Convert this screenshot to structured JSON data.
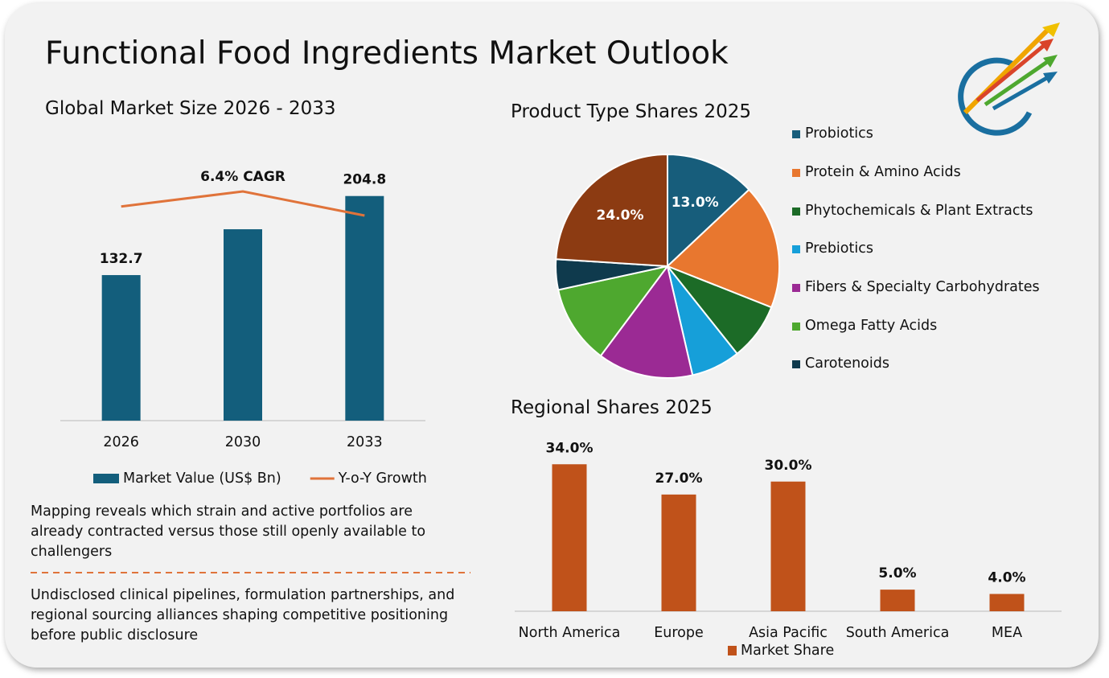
{
  "title": "Functional Food Ingredients Market Outlook",
  "chart_data": [
    {
      "type": "bar",
      "title": "Global Market Size 2026 - 2033",
      "categories": [
        "2026",
        "2030",
        "2033"
      ],
      "series": [
        {
          "name": "Market Value (US$ Bn)",
          "color": "#135e7c",
          "values": [
            132.7,
            174.5,
            204.8
          ],
          "value_labels": [
            "132.7",
            null,
            "204.8"
          ]
        },
        {
          "name": "Y-o-Y Growth",
          "type": "line",
          "axis": "y2",
          "color": "#e0733a",
          "values": [
            7.1,
            7.6,
            6.8
          ]
        }
      ],
      "annotation": "6.4% CAGR",
      "ylim": [
        0,
        220
      ],
      "y2lim": [
        0,
        8
      ],
      "legend": "bottom"
    },
    {
      "type": "pie",
      "title": "Product Type Shares 2025",
      "categories": [
        "Probiotics",
        "Protein & Amino Acids",
        "Phytochemicals & Plant Extracts",
        "Prebiotics",
        "Fibers & Specialty Carbohydrates",
        "Omega Fatty Acids",
        "Carotenoids",
        null
      ],
      "values": [
        13.0,
        18.0,
        8.3,
        7.1,
        13.8,
        11.4,
        4.4,
        24.0
      ],
      "value_labels": [
        "13.0%",
        null,
        null,
        null,
        null,
        null,
        null,
        "24.0%"
      ],
      "colors": [
        "#175d7b",
        "#e8772f",
        "#1c6b27",
        "#169fd9",
        "#9b2a94",
        "#4ea82f",
        "#0f3a4d",
        "#8c3b12"
      ],
      "legend": "right"
    },
    {
      "type": "bar",
      "title": "Regional Shares 2025",
      "categories": [
        "North America",
        "Europe",
        "Asia Pacific",
        "South America",
        "MEA"
      ],
      "series": [
        {
          "name": "Market Share",
          "color": "#c0521a",
          "values": [
            34.0,
            27.0,
            30.0,
            5.0,
            4.0
          ],
          "value_labels": [
            "34.0%",
            "27.0%",
            "30.0%",
            "5.0%",
            "4.0%"
          ]
        }
      ],
      "ylim": [
        0,
        40
      ],
      "legend": "bottom"
    }
  ],
  "notes": [
    "Mapping reveals which strain and active portfolios are already contracted versus those still openly available to challengers",
    "Undisclosed clinical pipelines, formulation partnerships, and regional sourcing alliances shaping competitive positioning before public disclosure"
  ]
}
